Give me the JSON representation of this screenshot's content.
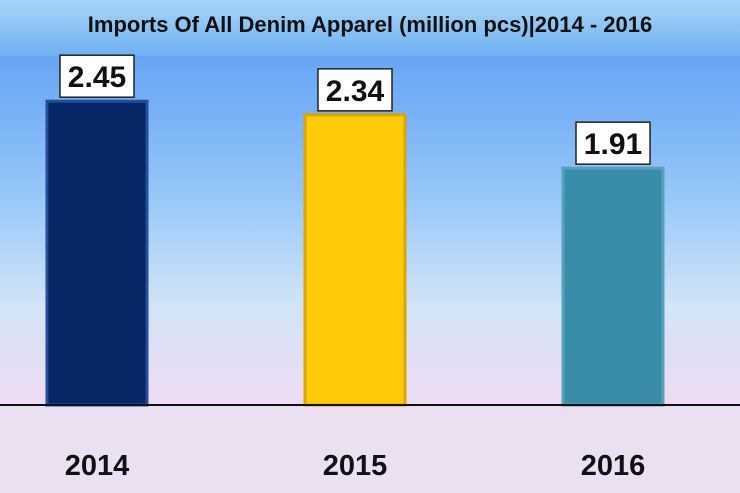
{
  "chart_data": {
    "type": "bar",
    "title": "Imports Of All Denim Apparel (million pcs)|2014 - 2016",
    "categories": [
      "2014",
      "2015",
      "2016"
    ],
    "values": [
      2.45,
      2.34,
      1.91
    ],
    "data_labels": [
      "2.45",
      "2.34",
      "1.91"
    ],
    "ylim": [
      0,
      2.75
    ],
    "grid": false,
    "legend": "none",
    "colors": [
      "#062766",
      "#ffca08",
      "#3a8da8"
    ],
    "border_colors": [
      "#274e9c",
      "#d7a607",
      "#57a2bb"
    ]
  }
}
